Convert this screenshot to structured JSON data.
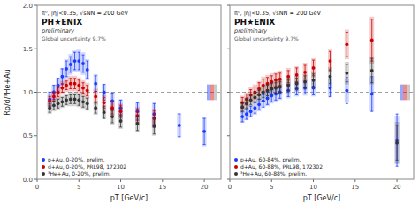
{
  "chart_data": [
    {
      "type": "scatter",
      "title": "π⁰, |η|<0.35, √sNN = 200 GeV",
      "x_label": "pT [GeV/c]",
      "y_label": "Rp/d/³He+Au",
      "annotations": [
        "PH★ENIX",
        "preliminary",
        "Global uncertainty 9.7%"
      ],
      "xlim": [
        0,
        22
      ],
      "xticks": [
        0,
        5,
        10,
        15,
        20
      ],
      "ylim": [
        0,
        2
      ],
      "yticks": [
        {
          "value": 0,
          "label": "0.0"
        },
        {
          "value": 0.5,
          "label": "0.5"
        },
        {
          "value": 1.0,
          "label": "1.0"
        },
        {
          "value": 1.5,
          "label": "1.5"
        },
        {
          "value": 2.0,
          "label": "2.0"
        }
      ],
      "grid": false,
      "legend": "lower left",
      "marker": "circle",
      "reference_line": 1.0,
      "global_uncertainty": {
        "half_height": 0.09,
        "colors": [
          "#1a3aff",
          "#cc0000",
          "#888888"
        ]
      },
      "series": [
        {
          "name": "p+Au, 0-20%, prelim.",
          "color": "#1a3aff",
          "x": [
            1.5,
            2.0,
            2.5,
            3.0,
            3.5,
            4.0,
            4.5,
            5.0,
            5.5,
            6.0,
            7.0,
            8.0,
            9.0,
            10.0,
            12.0,
            14.0,
            17.0,
            20.0
          ],
          "values": [
            0.92,
            1.0,
            1.08,
            1.18,
            1.27,
            1.32,
            1.36,
            1.36,
            1.33,
            1.26,
            1.1,
            1.0,
            0.9,
            0.82,
            0.78,
            0.75,
            0.62,
            0.55
          ],
          "errors": [
            0.08,
            0.08,
            0.08,
            0.09,
            0.09,
            0.09,
            0.1,
            0.1,
            0.1,
            0.1,
            0.09,
            0.09,
            0.09,
            0.09,
            0.1,
            0.12,
            0.13,
            0.15
          ],
          "sys": [
            0.09,
            0.09,
            0.09,
            0.1,
            0.11,
            0.12,
            0.12,
            0.13,
            0.13,
            0.12,
            0.11,
            0.1,
            0.1,
            0.1,
            0.11,
            0.13,
            0.14,
            0.17
          ]
        },
        {
          "name": "d+Au, 0-20%, PRL98, 172302",
          "color": "#cc0000",
          "x": [
            1.5,
            2.0,
            2.5,
            3.0,
            3.5,
            4.0,
            4.5,
            5.0,
            5.5,
            6.0,
            7.0,
            8.0,
            9.0,
            10.0,
            12.0,
            14.0
          ],
          "values": [
            0.9,
            0.95,
            1.0,
            1.05,
            1.08,
            1.1,
            1.1,
            1.08,
            1.05,
            1.02,
            0.95,
            0.88,
            0.82,
            0.78,
            0.73,
            0.7
          ],
          "errors": [
            0.05,
            0.05,
            0.05,
            0.05,
            0.05,
            0.06,
            0.06,
            0.06,
            0.06,
            0.06,
            0.06,
            0.06,
            0.07,
            0.07,
            0.08,
            0.09
          ],
          "sys": [
            0.07,
            0.07,
            0.08,
            0.08,
            0.08,
            0.09,
            0.09,
            0.09,
            0.09,
            0.09,
            0.09,
            0.09,
            0.09,
            0.09,
            0.1,
            0.11
          ]
        },
        {
          "name": "³He+Au, 0-20%, prelim.",
          "color": "#333333",
          "x": [
            1.5,
            2.0,
            2.5,
            3.0,
            3.5,
            4.0,
            4.5,
            5.0,
            5.5,
            6.0,
            7.0,
            8.0,
            9.0,
            10.0,
            12.0,
            14.0
          ],
          "values": [
            0.82,
            0.85,
            0.87,
            0.89,
            0.91,
            0.92,
            0.92,
            0.91,
            0.89,
            0.87,
            0.82,
            0.77,
            0.72,
            0.67,
            0.64,
            0.61
          ],
          "errors": [
            0.05,
            0.05,
            0.05,
            0.05,
            0.05,
            0.05,
            0.05,
            0.06,
            0.06,
            0.06,
            0.06,
            0.07,
            0.07,
            0.07,
            0.08,
            0.09
          ],
          "sys": [
            0.07,
            0.07,
            0.07,
            0.07,
            0.07,
            0.08,
            0.08,
            0.08,
            0.08,
            0.08,
            0.08,
            0.08,
            0.09,
            0.09,
            0.1,
            0.11
          ]
        }
      ]
    },
    {
      "type": "scatter",
      "title": "π⁰, |η|<0.35, √sNN = 200 GeV",
      "x_label": "pT [GeV/c]",
      "annotations": [
        "PH★ENIX",
        "preliminary",
        "Global uncertainty 9.7%"
      ],
      "xlim": [
        0,
        22
      ],
      "xticks": [
        0,
        5,
        10,
        15,
        20
      ],
      "ylim": [
        0,
        2
      ],
      "yticks": [
        {
          "value": 0,
          "label": "0.0"
        },
        {
          "value": 0.5,
          "label": "0.5"
        },
        {
          "value": 1.0,
          "label": "1.0"
        },
        {
          "value": 1.5,
          "label": "1.5"
        },
        {
          "value": 2.0,
          "label": "2.0"
        }
      ],
      "tick_labels": "x",
      "grid": false,
      "legend": "lower left",
      "marker": "circle",
      "reference_line": 1.0,
      "global_uncertainty": {
        "half_height": 0.09,
        "colors": [
          "#1a3aff",
          "#cc0000",
          "#888888"
        ]
      },
      "series": [
        {
          "name": "p+Au, 60-84%, prelim.",
          "color": "#1a3aff",
          "x": [
            1.5,
            2.0,
            2.5,
            3.0,
            3.5,
            4.0,
            4.5,
            5.0,
            5.5,
            6.0,
            7.0,
            8.0,
            9.0,
            10.0,
            12.0,
            14.0,
            17.0,
            20.0
          ],
          "values": [
            0.72,
            0.75,
            0.78,
            0.82,
            0.86,
            0.9,
            0.93,
            0.96,
            0.98,
            1.0,
            1.02,
            1.04,
            1.05,
            1.05,
            1.05,
            1.02,
            0.98,
            0.45
          ],
          "errors": [
            0.06,
            0.06,
            0.06,
            0.06,
            0.06,
            0.07,
            0.07,
            0.07,
            0.07,
            0.07,
            0.07,
            0.07,
            0.07,
            0.08,
            0.1,
            0.15,
            0.2,
            0.3
          ],
          "sys": [
            0.07,
            0.07,
            0.07,
            0.08,
            0.08,
            0.08,
            0.09,
            0.09,
            0.09,
            0.09,
            0.09,
            0.09,
            0.09,
            0.1,
            0.11,
            0.14,
            0.2,
            0.28
          ]
        },
        {
          "name": "d+Au, 60-88%, PRL98, 172302",
          "color": "#cc0000",
          "x": [
            1.5,
            2.0,
            2.5,
            3.0,
            3.5,
            4.0,
            4.5,
            5.0,
            5.5,
            6.0,
            7.0,
            8.0,
            9.0,
            10.0,
            12.0,
            14.0,
            17.0
          ],
          "values": [
            0.88,
            0.92,
            0.97,
            1.0,
            1.04,
            1.08,
            1.1,
            1.12,
            1.14,
            1.15,
            1.18,
            1.2,
            1.23,
            1.28,
            1.36,
            1.55,
            1.6
          ],
          "errors": [
            0.06,
            0.06,
            0.06,
            0.06,
            0.07,
            0.07,
            0.07,
            0.07,
            0.07,
            0.07,
            0.07,
            0.08,
            0.08,
            0.09,
            0.11,
            0.14,
            0.24
          ],
          "sys": [
            0.08,
            0.08,
            0.09,
            0.09,
            0.09,
            0.1,
            0.1,
            0.1,
            0.1,
            0.1,
            0.1,
            0.1,
            0.11,
            0.11,
            0.13,
            0.17,
            0.27
          ]
        },
        {
          "name": "³He+Au, 60-88%, prelim.",
          "color": "#333333",
          "x": [
            1.5,
            2.0,
            2.5,
            3.0,
            3.5,
            4.0,
            4.5,
            5.0,
            5.5,
            6.0,
            7.0,
            8.0,
            9.0,
            10.0,
            12.0,
            14.0,
            17.0,
            20.0
          ],
          "values": [
            0.83,
            0.87,
            0.91,
            0.94,
            0.97,
            1.0,
            1.02,
            1.04,
            1.05,
            1.06,
            1.08,
            1.1,
            1.12,
            1.14,
            1.18,
            1.22,
            1.25,
            0.42
          ],
          "errors": [
            0.05,
            0.05,
            0.05,
            0.05,
            0.05,
            0.06,
            0.06,
            0.06,
            0.06,
            0.06,
            0.06,
            0.06,
            0.07,
            0.07,
            0.08,
            0.1,
            0.14,
            0.2
          ],
          "sys": [
            0.07,
            0.07,
            0.07,
            0.07,
            0.08,
            0.08,
            0.08,
            0.08,
            0.08,
            0.09,
            0.09,
            0.09,
            0.09,
            0.1,
            0.11,
            0.13,
            0.16,
            0.24
          ]
        }
      ]
    }
  ]
}
